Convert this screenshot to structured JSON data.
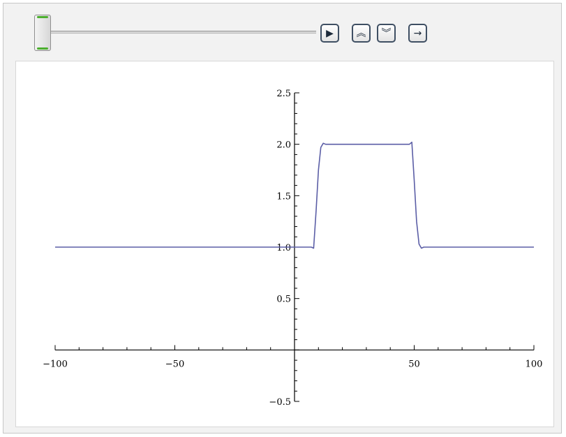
{
  "controls": {
    "slider_value_fraction": 0.0,
    "buttons": [
      {
        "name": "play-button",
        "icon": "play-icon",
        "glyph": "▶"
      },
      {
        "name": "faster-button",
        "icon": "double-chevron-up-icon",
        "glyph": "︽"
      },
      {
        "name": "slower-button",
        "icon": "double-chevron-down-icon",
        "glyph": "︾"
      },
      {
        "name": "direction-button",
        "icon": "arrow-right-icon",
        "glyph": "→"
      }
    ]
  },
  "chart_data": {
    "type": "line",
    "title": "",
    "xlabel": "",
    "ylabel": "",
    "xlim": [
      -100,
      100
    ],
    "ylim": [
      -0.5,
      2.5
    ],
    "x_ticks": [
      -100,
      -50,
      50,
      100
    ],
    "x_tick_labels": [
      "−100",
      "−50",
      "50",
      "100"
    ],
    "y_ticks": [
      -0.5,
      0.5,
      1.0,
      1.5,
      2.0,
      2.5
    ],
    "y_tick_labels": [
      "−0.5",
      "0.5",
      "1.0",
      "1.5",
      "2.0",
      "2.5"
    ],
    "grid": false,
    "line_color": "#5b5ea6",
    "series": [
      {
        "x": [
          -100,
          7,
          8,
          9,
          10,
          11,
          12,
          13,
          14,
          48,
          49,
          50,
          51,
          52,
          53,
          54,
          100
        ],
        "y": [
          1.0,
          1.0,
          0.99,
          1.35,
          1.75,
          1.97,
          2.01,
          2.0,
          2.0,
          2.0,
          2.02,
          1.65,
          1.25,
          1.03,
          0.99,
          1.0,
          1.0
        ]
      }
    ]
  }
}
